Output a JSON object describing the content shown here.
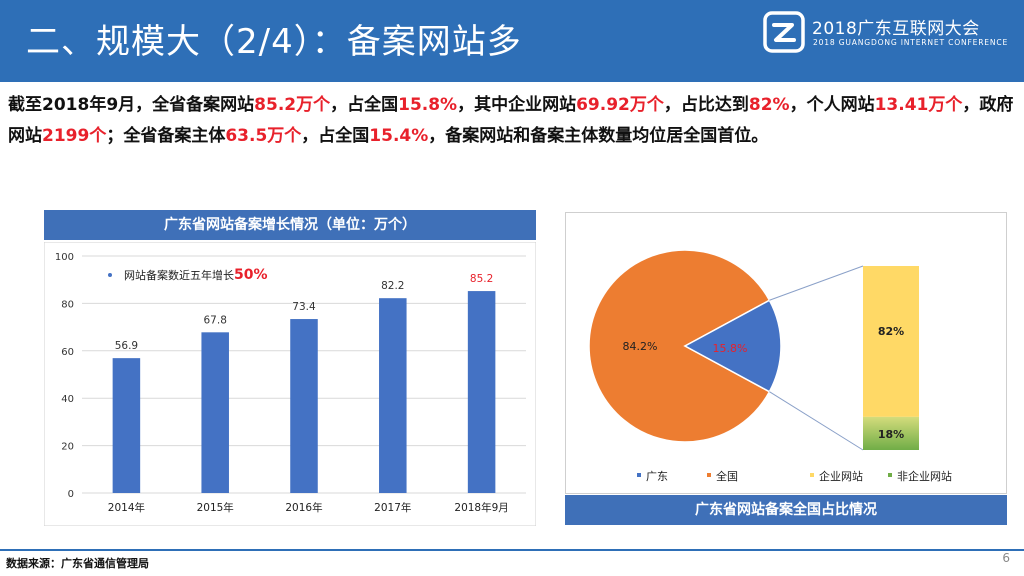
{
  "header": {
    "title": "二、规模大（2/4）：备案网站多",
    "logo_line1": "2018广东互联网大会",
    "logo_line2": "2018 GUANGDONG INTERNET CONFERENCE"
  },
  "intro": {
    "parts": [
      {
        "text": "截至2018年9月，全省备案网站",
        "hl": false
      },
      {
        "text": "85.2万个",
        "hl": true
      },
      {
        "text": "，占全国",
        "hl": false
      },
      {
        "text": "15.8%",
        "hl": true
      },
      {
        "text": "，其中企业网站",
        "hl": false
      },
      {
        "text": "69.92万个",
        "hl": true
      },
      {
        "text": "，占比达到",
        "hl": false
      },
      {
        "text": "82%",
        "hl": true
      },
      {
        "text": "，个人网站",
        "hl": false
      },
      {
        "text": "13.41万个",
        "hl": true
      },
      {
        "text": "，政府网站",
        "hl": false
      },
      {
        "text": "2199个",
        "hl": true
      },
      {
        "text": "；全省备案主体",
        "hl": false
      },
      {
        "text": "63.5万个",
        "hl": true
      },
      {
        "text": "，占全国",
        "hl": false
      },
      {
        "text": "15.4%",
        "hl": true
      },
      {
        "text": "，备案网站和备案主体数量均位居全国首位。",
        "hl": false
      }
    ]
  },
  "bar_section": {
    "title": "广东省网站备案增长情况（单位：万个）"
  },
  "pie_section": {
    "title": "广东省网站备案全国占比情况"
  },
  "footer": {
    "source": "数据来源：广东省通信管理局",
    "page": "6"
  },
  "colors": {
    "header_bg": "#2e6fb7",
    "bar": "#4472c4",
    "highlight": "#e8212b",
    "pie_other": "#ed7d31",
    "pie_gd": "#4472c4",
    "enterprise": "#ffd966",
    "non_enterprise": "#70ad47"
  },
  "chart_data": [
    {
      "type": "bar",
      "categories": [
        "2014年",
        "2015年",
        "2016年",
        "2017年",
        "2018年9月"
      ],
      "values": [
        56.9,
        67.8,
        73.4,
        82.2,
        85.2
      ],
      "value_labels": [
        "56.9",
        "67.8",
        "73.4",
        "82.2",
        "85.2"
      ],
      "highlight_index": 4,
      "ylim": [
        0,
        100
      ],
      "yticks": [
        0,
        20,
        40,
        60,
        80,
        100
      ],
      "grid": true,
      "annotation": {
        "prefix": "网站备案数近五年增长",
        "emphasis": "50%"
      }
    },
    {
      "type": "pie",
      "slices": [
        {
          "name": "广东",
          "value": 15.8,
          "label": "15.8%"
        },
        {
          "name": "全国",
          "value": 84.2,
          "label": "84.2%"
        }
      ],
      "legend_position": "bottom"
    },
    {
      "type": "bar",
      "stacked": true,
      "segments": [
        {
          "name": "企业网站",
          "value": 82,
          "label": "82%"
        },
        {
          "name": "非企业网站",
          "value": 18,
          "label": "18%"
        }
      ],
      "legend_position": "bottom"
    }
  ]
}
